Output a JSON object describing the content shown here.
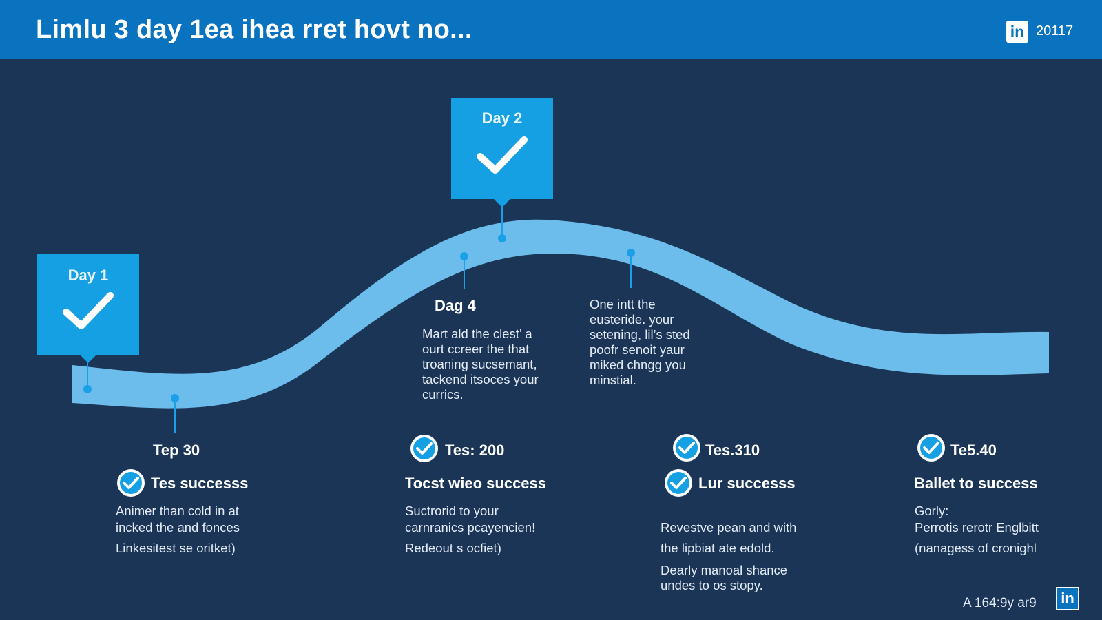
{
  "header": {
    "title": "Limlu 3 day 1ea ihea rret hovt no...",
    "logo": "in",
    "year": "20117"
  },
  "milestones": {
    "day1": {
      "label": "Day 1",
      "icon": "check-icon"
    },
    "day2": {
      "label": "Day 2",
      "icon": "check-icon"
    }
  },
  "notes": {
    "dag4": {
      "heading": "Dag 4",
      "lines": [
        "Mart ald the clest’ a",
        "ourt ccreer the that",
        "troaning sucsemant,",
        "tackend itsoces your",
        "currics."
      ]
    },
    "right": {
      "lines": [
        "One intt the",
        "eusteride. your",
        "setening, lil’s sted",
        "poofr senoit yaur",
        "miked chngg you",
        "minstial."
      ]
    }
  },
  "columns": [
    {
      "step": "Tep 30",
      "success": "Tes successs",
      "lines": [
        "Animer than cold in at",
        "incked the and fonces",
        "Linkesitest se oritket)"
      ]
    },
    {
      "step": "Tes: 200",
      "success": "Tocst wieo success",
      "lines": [
        "Suctrorid to your",
        "carnranics pcayencien!",
        "Redeout s ocfiet)"
      ]
    },
    {
      "step": "Tes.310",
      "success": "Lur successs",
      "lines": [
        "Revestve pean and with",
        "the lipbiat ate edold.",
        "Dearly manoal shance",
        "undes to os stopy."
      ]
    },
    {
      "step": "Te5.40",
      "success": "Ballet to success",
      "lines": [
        "Gorly:",
        "Perrotis rerotr Englbitt",
        "(nanagess of cronighl"
      ]
    }
  ],
  "footer": {
    "text": "A 164:9y ar9",
    "logo": "in"
  },
  "colors": {
    "background": "#1b3557",
    "header": "#0a73c0",
    "accent": "#14a0e3",
    "wave": "#6cbdec"
  }
}
